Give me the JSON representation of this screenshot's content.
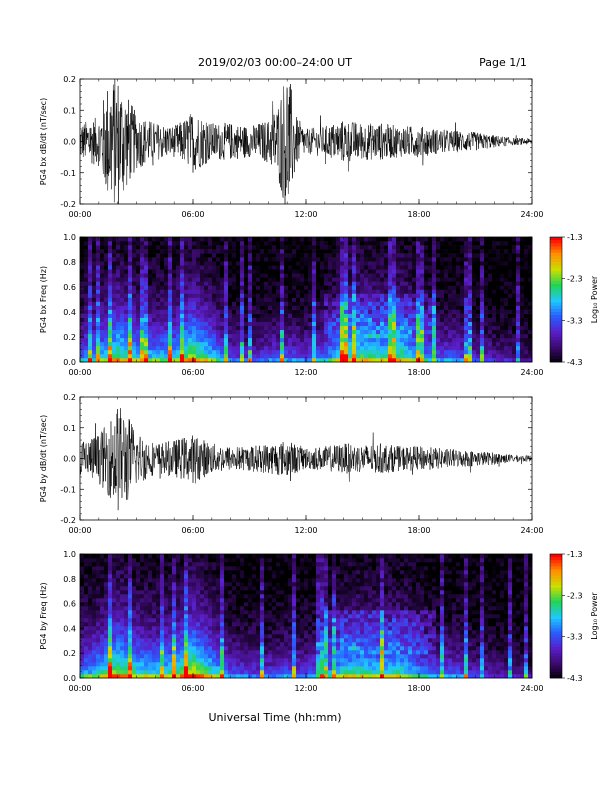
{
  "header": {
    "title": "2019/02/03  00:00–24:00 UT",
    "page_label": "Page 1/1"
  },
  "footer": {
    "xlabel": "Universal Time (hh:mm)"
  },
  "colorbar": {
    "label": "Log₁₀ Power",
    "ticks": [
      "-1.3",
      "-2.3",
      "-3.3",
      "-4.3"
    ],
    "colors": [
      "#000000",
      "#3a0a6a",
      "#5a1ec8",
      "#2a5cff",
      "#20c8ff",
      "#22d35a",
      "#c8e000",
      "#ff9000",
      "#ff0000"
    ]
  },
  "chart_data": [
    {
      "type": "line",
      "title": "",
      "xlabel": "",
      "ylabel": "PG4 bx dB/dt (nT/sec)",
      "xlim": [
        0,
        24
      ],
      "ylim": [
        -0.2,
        0.2
      ],
      "xticklabels": [
        "00:00",
        "06:00",
        "12:00",
        "18:00",
        "24:00"
      ],
      "yticklabels": [
        "0.2",
        "0.1",
        "0.0",
        "-0.1",
        "-0.2"
      ],
      "envelope": {
        "x_hours": [
          0,
          1,
          1.5,
          2,
          2.5,
          3,
          4,
          5,
          5.5,
          6,
          7,
          8,
          9,
          10,
          10.5,
          11,
          11.5,
          12,
          13,
          14,
          15,
          16,
          17,
          18,
          19,
          20,
          21,
          22,
          23,
          24
        ],
        "amplitude": [
          0.06,
          0.08,
          0.2,
          0.22,
          0.15,
          0.09,
          0.06,
          0.05,
          0.07,
          0.1,
          0.06,
          0.06,
          0.05,
          0.07,
          0.12,
          0.25,
          0.08,
          0.04,
          0.05,
          0.07,
          0.06,
          0.06,
          0.05,
          0.05,
          0.04,
          0.035,
          0.03,
          0.02,
          0.012,
          0.01
        ]
      },
      "color": "#000000"
    },
    {
      "type": "heatmap",
      "title": "",
      "xlabel": "",
      "ylabel": "PG4 bx Freq (Hz)",
      "xlim": [
        0,
        24
      ],
      "ylim": [
        0,
        1.0
      ],
      "xticklabels": [
        "00:00",
        "06:00",
        "12:00",
        "18:00",
        "24:00"
      ],
      "yticklabels": [
        "1.0",
        "0.8",
        "0.6",
        "0.4",
        "0.2",
        "0.0"
      ],
      "zlim": [
        -4.3,
        -1.3
      ],
      "activity": {
        "x_hours": [
          0,
          1,
          2,
          3,
          4,
          5,
          6,
          7,
          8,
          9,
          10,
          11,
          12,
          13,
          14,
          15,
          16,
          17,
          18,
          19,
          20,
          21,
          22,
          23,
          24
        ],
        "level": [
          0.45,
          0.55,
          0.75,
          0.6,
          0.55,
          0.6,
          0.8,
          0.6,
          0.35,
          0.3,
          0.35,
          0.4,
          0.35,
          0.45,
          0.7,
          0.7,
          0.65,
          0.7,
          0.55,
          0.4,
          0.4,
          0.3,
          0.25,
          0.2,
          0.15
        ]
      }
    },
    {
      "type": "line",
      "title": "",
      "xlabel": "",
      "ylabel": "PG4 by dB/dt (nT/sec)",
      "xlim": [
        0,
        24
      ],
      "ylim": [
        -0.2,
        0.2
      ],
      "xticklabels": [
        "00:00",
        "06:00",
        "12:00",
        "18:00",
        "24:00"
      ],
      "yticklabels": [
        "0.2",
        "0.1",
        "0.0",
        "-0.1",
        "-0.2"
      ],
      "envelope": {
        "x_hours": [
          0,
          1,
          1.5,
          2,
          2.5,
          3,
          4,
          5,
          6,
          7,
          8,
          9,
          10,
          11,
          12,
          13,
          14,
          15,
          16,
          17,
          18,
          19,
          20,
          21,
          22,
          23,
          24
        ],
        "amplitude": [
          0.06,
          0.08,
          0.12,
          0.18,
          0.15,
          0.09,
          0.05,
          0.06,
          0.08,
          0.05,
          0.04,
          0.04,
          0.05,
          0.06,
          0.035,
          0.04,
          0.05,
          0.045,
          0.05,
          0.04,
          0.04,
          0.035,
          0.03,
          0.025,
          0.02,
          0.012,
          0.01
        ]
      },
      "color": "#000000"
    },
    {
      "type": "heatmap",
      "title": "",
      "xlabel": "",
      "ylabel": "PG4 by Freq (Hz)",
      "xlim": [
        0,
        24
      ],
      "ylim": [
        0,
        1.0
      ],
      "xticklabels": [
        "00:00",
        "06:00",
        "12:00",
        "18:00",
        "24:00"
      ],
      "yticklabels": [
        "1.0",
        "0.8",
        "0.6",
        "0.4",
        "0.2",
        "0.0"
      ],
      "zlim": [
        -4.3,
        -1.3
      ],
      "activity": {
        "x_hours": [
          0,
          1,
          2,
          3,
          4,
          5,
          6,
          7,
          8,
          9,
          10,
          11,
          12,
          13,
          14,
          15,
          16,
          17,
          18,
          19,
          20,
          21,
          22,
          23,
          24
        ],
        "level": [
          0.5,
          0.6,
          0.8,
          0.65,
          0.6,
          0.65,
          0.85,
          0.65,
          0.4,
          0.35,
          0.35,
          0.4,
          0.35,
          0.45,
          0.65,
          0.65,
          0.6,
          0.65,
          0.5,
          0.4,
          0.4,
          0.3,
          0.25,
          0.2,
          0.15
        ]
      }
    }
  ]
}
